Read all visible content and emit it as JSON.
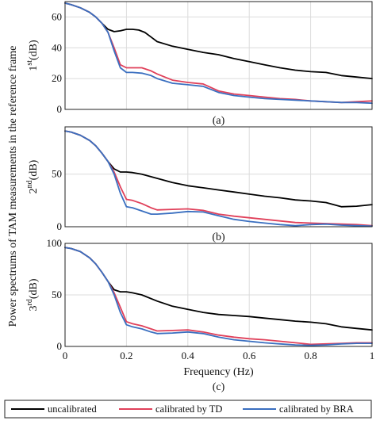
{
  "chart_data": [
    {
      "type": "line",
      "panel_label": "(a)",
      "ylabel_ord": "1",
      "ylabel_sup": "st",
      "ylabel_unit": "(dB)",
      "xlim": [
        0,
        1
      ],
      "ylim": [
        0,
        70
      ],
      "yticks": [
        0,
        20,
        40,
        60
      ],
      "grid": true,
      "series": [
        {
          "name": "uncalibrated",
          "color": "#000000",
          "x": [
            0,
            0.02,
            0.05,
            0.08,
            0.1,
            0.12,
            0.14,
            0.16,
            0.18,
            0.2,
            0.22,
            0.24,
            0.26,
            0.28,
            0.3,
            0.35,
            0.4,
            0.45,
            0.5,
            0.55,
            0.6,
            0.65,
            0.7,
            0.75,
            0.8,
            0.85,
            0.9,
            0.95,
            1.0
          ],
          "y": [
            69,
            68,
            66,
            63,
            60,
            56,
            52,
            50.5,
            51,
            52,
            52,
            51.5,
            50,
            47,
            44,
            41,
            39,
            37,
            35.5,
            33,
            31,
            29,
            27,
            25.5,
            24.5,
            24,
            22,
            21,
            20
          ]
        },
        {
          "name": "calibrated by TD",
          "color": "#e0405a",
          "x": [
            0,
            0.02,
            0.05,
            0.08,
            0.1,
            0.12,
            0.14,
            0.16,
            0.18,
            0.2,
            0.22,
            0.25,
            0.28,
            0.3,
            0.35,
            0.4,
            0.45,
            0.5,
            0.55,
            0.6,
            0.65,
            0.7,
            0.75,
            0.8,
            0.85,
            0.9,
            0.95,
            1.0
          ],
          "y": [
            69,
            68,
            66,
            63,
            60,
            56,
            50,
            40,
            29,
            27,
            27,
            27,
            25,
            23,
            19,
            17.5,
            16.5,
            12,
            10,
            9,
            8,
            7,
            6.5,
            5.5,
            5,
            4.5,
            5,
            5.5
          ]
        },
        {
          "name": "calibrated by BRA",
          "color": "#3a6fc0",
          "x": [
            0,
            0.02,
            0.05,
            0.08,
            0.1,
            0.12,
            0.14,
            0.16,
            0.18,
            0.2,
            0.22,
            0.25,
            0.28,
            0.3,
            0.35,
            0.4,
            0.45,
            0.5,
            0.55,
            0.6,
            0.65,
            0.7,
            0.75,
            0.8,
            0.85,
            0.9,
            0.95,
            1.0
          ],
          "y": [
            69,
            68,
            66,
            63,
            60,
            56,
            50,
            38,
            27,
            24,
            24,
            23.5,
            22,
            20,
            17,
            16,
            15,
            11,
            9,
            8,
            7,
            6.5,
            6,
            5.5,
            5,
            4.5,
            4.5,
            4
          ]
        }
      ]
    },
    {
      "type": "line",
      "panel_label": "(b)",
      "ylabel_ord": "2",
      "ylabel_sup": "nd",
      "ylabel_unit": "(dB)",
      "xlim": [
        0,
        1
      ],
      "ylim": [
        0,
        95
      ],
      "yticks": [
        0,
        50
      ],
      "grid": true,
      "series": [
        {
          "name": "uncalibrated",
          "color": "#000000",
          "x": [
            0,
            0.02,
            0.05,
            0.08,
            0.1,
            0.12,
            0.14,
            0.16,
            0.18,
            0.2,
            0.22,
            0.25,
            0.3,
            0.35,
            0.4,
            0.45,
            0.5,
            0.55,
            0.6,
            0.65,
            0.7,
            0.75,
            0.8,
            0.85,
            0.9,
            0.95,
            1.0
          ],
          "y": [
            91,
            90,
            87,
            82,
            77,
            70,
            62,
            55,
            52,
            52,
            51.5,
            50,
            46,
            42,
            39,
            37,
            35,
            33,
            31,
            29,
            27.5,
            25.5,
            24.5,
            23,
            19,
            19.5,
            21
          ]
        },
        {
          "name": "calibrated by TD",
          "color": "#e0405a",
          "x": [
            0,
            0.02,
            0.05,
            0.08,
            0.1,
            0.12,
            0.14,
            0.16,
            0.18,
            0.2,
            0.22,
            0.25,
            0.28,
            0.3,
            0.35,
            0.4,
            0.45,
            0.5,
            0.55,
            0.6,
            0.65,
            0.7,
            0.75,
            0.8,
            0.85,
            0.9,
            0.95,
            1.0
          ],
          "y": [
            91,
            90,
            87,
            82,
            77,
            70,
            62,
            52,
            38,
            26,
            25,
            22,
            18,
            16,
            16.5,
            17,
            15.5,
            12,
            10,
            8.5,
            7,
            5.5,
            4,
            3.5,
            3,
            2.5,
            2,
            1
          ]
        },
        {
          "name": "calibrated by BRA",
          "color": "#3a6fc0",
          "x": [
            0,
            0.02,
            0.05,
            0.08,
            0.1,
            0.12,
            0.14,
            0.16,
            0.18,
            0.2,
            0.22,
            0.25,
            0.28,
            0.3,
            0.35,
            0.4,
            0.45,
            0.5,
            0.55,
            0.6,
            0.65,
            0.7,
            0.75,
            0.8,
            0.85,
            0.9,
            0.95,
            1.0
          ],
          "y": [
            91,
            90,
            87,
            82,
            77,
            70,
            62,
            50,
            32,
            19,
            18,
            15,
            12,
            12,
            13,
            14.5,
            14,
            10.5,
            7,
            5,
            3.5,
            2,
            1,
            2,
            2.5,
            1.5,
            1,
            0.5
          ]
        }
      ]
    },
    {
      "type": "line",
      "panel_label": "(c)",
      "ylabel_ord": "3",
      "ylabel_sup": "rd",
      "ylabel_unit": "(dB)",
      "xlabel": "Frequency (Hz)",
      "xlim": [
        0,
        1
      ],
      "xticks": [
        0,
        0.2,
        0.4,
        0.6,
        0.8,
        1
      ],
      "xticklabels": [
        "0",
        "0.2",
        "0.4",
        "0.6",
        "0.8",
        "1"
      ],
      "ylim": [
        0,
        100
      ],
      "yticks": [
        0,
        50,
        100
      ],
      "grid": true,
      "series": [
        {
          "name": "uncalibrated",
          "color": "#000000",
          "x": [
            0,
            0.02,
            0.05,
            0.08,
            0.1,
            0.12,
            0.14,
            0.16,
            0.18,
            0.2,
            0.22,
            0.25,
            0.3,
            0.35,
            0.4,
            0.45,
            0.5,
            0.55,
            0.6,
            0.65,
            0.7,
            0.75,
            0.8,
            0.85,
            0.9,
            0.95,
            1.0
          ],
          "y": [
            96,
            95,
            92,
            86,
            80,
            72,
            63,
            55,
            53,
            53,
            52,
            50,
            44,
            39,
            36,
            33,
            31,
            30,
            29,
            27.5,
            26,
            24.5,
            23.5,
            22,
            19,
            17.5,
            16
          ]
        },
        {
          "name": "calibrated by TD",
          "color": "#e0405a",
          "x": [
            0,
            0.02,
            0.05,
            0.08,
            0.1,
            0.12,
            0.14,
            0.16,
            0.18,
            0.2,
            0.22,
            0.25,
            0.28,
            0.3,
            0.35,
            0.4,
            0.45,
            0.5,
            0.55,
            0.6,
            0.65,
            0.7,
            0.75,
            0.8,
            0.85,
            0.9,
            0.95,
            1.0
          ],
          "y": [
            96,
            95,
            92,
            86,
            80,
            72,
            63,
            52,
            38,
            24,
            22,
            20,
            17,
            15,
            15.5,
            16,
            14,
            11,
            9,
            7.5,
            6.5,
            5,
            3.5,
            2,
            2.5,
            3,
            3.5,
            3.5
          ]
        },
        {
          "name": "calibrated by BRA",
          "color": "#3a6fc0",
          "x": [
            0,
            0.02,
            0.05,
            0.08,
            0.1,
            0.12,
            0.14,
            0.16,
            0.18,
            0.2,
            0.22,
            0.25,
            0.28,
            0.3,
            0.35,
            0.4,
            0.45,
            0.5,
            0.55,
            0.6,
            0.65,
            0.7,
            0.75,
            0.8,
            0.85,
            0.9,
            0.95,
            1.0
          ],
          "y": [
            96,
            95,
            92,
            86,
            80,
            72,
            63,
            50,
            33,
            21,
            19,
            17,
            14,
            12.5,
            13,
            14,
            12.5,
            9,
            6.5,
            5,
            3.5,
            2.5,
            1.5,
            1,
            1.5,
            2.5,
            3,
            3
          ]
        }
      ]
    }
  ],
  "shared_ylabel": "Power spectrums of TAM measurements in the reference frame",
  "legend": {
    "placement": "bottom",
    "entries": [
      {
        "label": "uncalibrated",
        "color": "#000000"
      },
      {
        "label": "calibrated by TD",
        "color": "#e0405a"
      },
      {
        "label": "calibrated by BRA",
        "color": "#3a6fc0"
      }
    ]
  }
}
